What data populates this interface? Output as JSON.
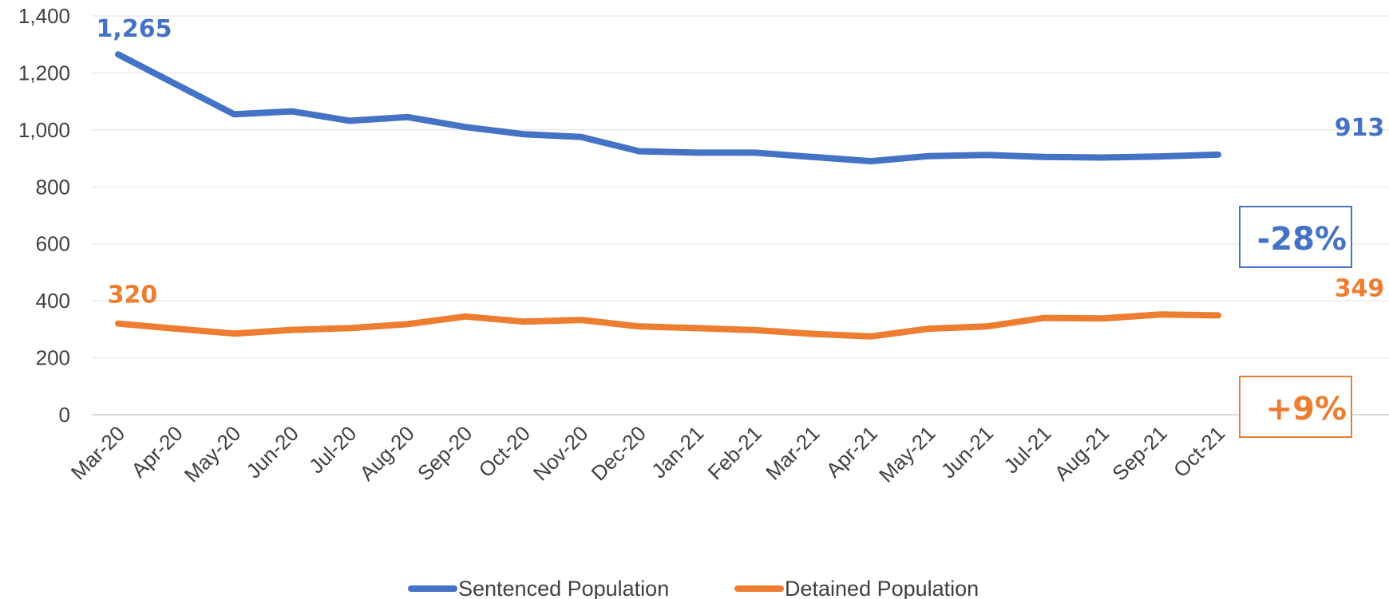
{
  "chart_data": {
    "type": "line",
    "categories": [
      "Mar-20",
      "Apr-20",
      "May-20",
      "Jun-20",
      "Jul-20",
      "Aug-20",
      "Sep-20",
      "Oct-20",
      "Nov-20",
      "Dec-20",
      "Jan-21",
      "Feb-21",
      "Mar-21",
      "Apr-21",
      "May-21",
      "Jun-21",
      "Jul-21",
      "Aug-21",
      "Sep-21",
      "Oct-21"
    ],
    "series": [
      {
        "name": "Sentenced Population",
        "color": "#4472C4",
        "values": [
          1265,
          1160,
          1055,
          1065,
          1032,
          1045,
          1010,
          985,
          975,
          925,
          920,
          920,
          905,
          890,
          908,
          912,
          905,
          903,
          907,
          913
        ],
        "start_label": "1,265",
        "end_label": "913",
        "change_label": "-28%"
      },
      {
        "name": "Detained Population",
        "color": "#ED7D31",
        "values": [
          320,
          302,
          285,
          298,
          304,
          318,
          345,
          327,
          333,
          310,
          304,
          297,
          284,
          275,
          302,
          310,
          340,
          338,
          352,
          349
        ],
        "start_label": "320",
        "end_label": "349",
        "change_label": "+9%"
      }
    ],
    "y_ticks": [
      "0",
      "200",
      "400",
      "600",
      "800",
      "1,000",
      "1,200",
      "1,400"
    ],
    "ylim": [
      0,
      1400
    ],
    "grid": true,
    "legend_position": "bottom"
  }
}
